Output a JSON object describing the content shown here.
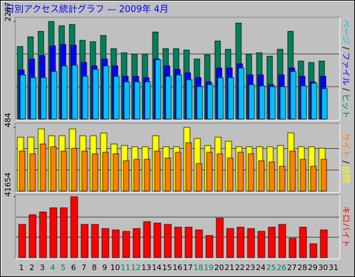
{
  "chart_data": {
    "type": "bar",
    "title": "日別アクセス統計グラフ — 2009年 4月",
    "categories": [
      "1",
      "2",
      "3",
      "4",
      "5",
      "6",
      "7",
      "8",
      "9",
      "10",
      "11",
      "12",
      "13",
      "14",
      "15",
      "16",
      "17",
      "18",
      "19",
      "20",
      "21",
      "22",
      "23",
      "24",
      "25",
      "26",
      "27",
      "28",
      "29",
      "30",
      "31"
    ],
    "category_colors": [
      "#000000",
      "#000000",
      "#000000",
      "#00805c",
      "#00805c",
      "#000000",
      "#000000",
      "#000000",
      "#000000",
      "#000000",
      "#00805c",
      "#00805c",
      "#000000",
      "#000000",
      "#000000",
      "#000000",
      "#000000",
      "#00805c",
      "#00805c",
      "#000000",
      "#000000",
      "#000000",
      "#000000",
      "#000000",
      "#00805c",
      "#00805c",
      "#000000",
      "#000000",
      "#000000",
      "#000000",
      "#000000"
    ],
    "separator": " / ",
    "panels": [
      {
        "ylim": [
          0,
          2287
        ],
        "yticks": [
          2287
        ],
        "gridlines": [
          762,
          1525
        ],
        "series": [
          {
            "name": "ヒット",
            "color": "#00805c",
            "values": [
              1701,
              1928,
              2057,
              2287,
              2187,
              2219,
              1847,
              1814,
              1960,
              1652,
              1555,
              1523,
              1523,
              2041,
              1652,
              1652,
              1620,
              1409,
              1507,
              1831,
              1636,
              2252,
              1523,
              1555,
              1474,
              1636,
              2057,
              1361,
              1328,
              1361,
              0
            ]
          },
          {
            "name": "ファイル",
            "color": "#0000ff",
            "values": [
              1150,
              1409,
              1490,
              1717,
              1750,
              1733,
              1328,
              1247,
              1409,
              1247,
              1004,
              1004,
              972,
              1409,
              1247,
              1166,
              1085,
              972,
              875,
              1199,
              1199,
              1296,
              1037,
              1037,
              810,
              1037,
              1199,
              1004,
              875,
              1004,
              0
            ]
          },
          {
            "name": "ページ",
            "color": "#00c0ff",
            "values": [
              1037,
              972,
              972,
              1118,
              1247,
              1264,
              1004,
              1166,
              1247,
              1004,
              875,
              875,
              875,
              1393,
              1004,
              1037,
              923,
              761,
              810,
              972,
              972,
              1199,
              810,
              778,
              761,
              761,
              1118,
              778,
              842,
              713,
              0
            ]
          }
        ]
      },
      {
        "ylim": [
          0,
          484
        ],
        "yticks": [
          484
        ],
        "gridlines": [
          161,
          323
        ],
        "series": [
          {
            "name": "訪問",
            "color": "#ffff00",
            "values": [
              410,
              410,
              473,
              421,
              421,
              473,
              421,
              421,
              442,
              358,
              347,
              337,
              337,
              421,
              337,
              337,
              484,
              400,
              347,
              410,
              379,
              337,
              337,
              337,
              337,
              347,
              442,
              337,
              337,
              326,
              0
            ]
          },
          {
            "name": "サイト",
            "color": "#ff8000",
            "values": [
              305,
              284,
              358,
              337,
              305,
              326,
              305,
              284,
              295,
              284,
              231,
              242,
              242,
              305,
              252,
              295,
              368,
              210,
              295,
              284,
              252,
              295,
              284,
              231,
              221,
              189,
              305,
              242,
              189,
              242,
              0
            ]
          }
        ]
      },
      {
        "ylim": [
          0,
          41654
        ],
        "yticks": [
          41654
        ],
        "gridlines": [
          13885,
          27770
        ],
        "series": [
          {
            "name": "キロバイト",
            "color": "#ff0000",
            "values": [
              22704,
              29326,
              31218,
              34056,
              34056,
              41654,
              22704,
              22704,
              19866,
              18920,
              17974,
              19866,
              24596,
              23650,
              22704,
              20812,
              20812,
              18920,
              15136,
              26961,
              19866,
              20812,
              19866,
              17974,
              20812,
              22704,
              13244,
              20812,
              9460,
              18920,
              0
            ]
          }
        ]
      }
    ]
  }
}
